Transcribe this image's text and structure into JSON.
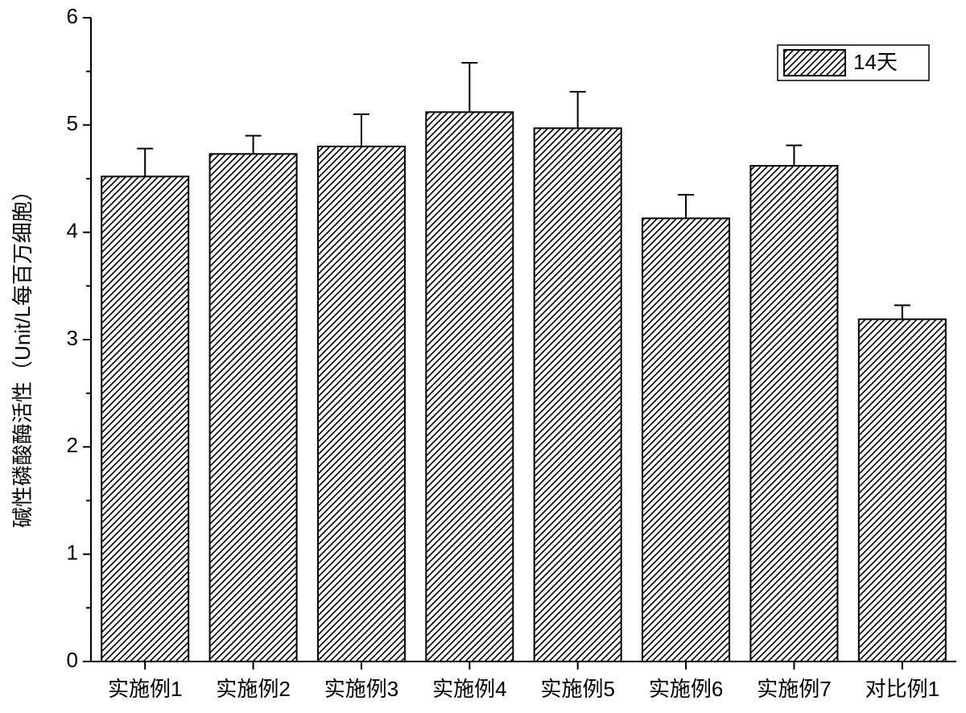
{
  "chart_data": {
    "type": "bar",
    "y_label": "碱性磷酸酶活性（Unit/L每百万细胞）",
    "categories": [
      "实施例1",
      "实施例2",
      "实施例3",
      "实施例4",
      "实施例5",
      "实施例6",
      "实施例7",
      "对比例1"
    ],
    "series": [
      {
        "name": "14天",
        "color": "#000000",
        "values": [
          4.52,
          4.73,
          4.8,
          5.12,
          4.97,
          4.13,
          4.62,
          3.19
        ],
        "errors": [
          0.26,
          0.17,
          0.3,
          0.46,
          0.34,
          0.22,
          0.19,
          0.13
        ]
      }
    ],
    "ylim": [
      0,
      6
    ],
    "yticks": [
      0,
      1,
      2,
      3,
      4,
      5,
      6
    ],
    "legend": "upper right",
    "hatch": true
  }
}
